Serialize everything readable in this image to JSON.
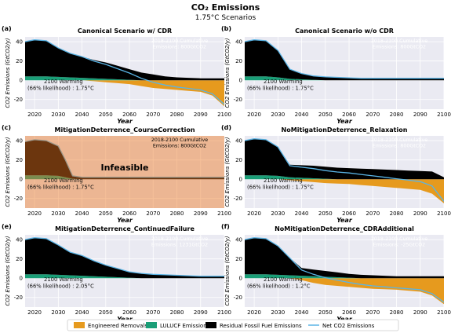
{
  "figure": {
    "title": "CO₂ Emissions",
    "subtitle": "1.75°C Scenarios",
    "legend": [
      {
        "label": "Engineered Removals",
        "color": "#E69A1E",
        "kind": "patch"
      },
      {
        "label": "LULUCF Emissions",
        "color": "#1A9E77",
        "kind": "patch"
      },
      {
        "label": "Residual Fossil Fuel Emissions",
        "color": "#000000",
        "kind": "patch"
      },
      {
        "label": "Net CO2 Emissions",
        "color": "#5AB4E5",
        "kind": "line"
      }
    ]
  },
  "chart_data": [
    {
      "type": "area",
      "panel": "(a)",
      "title": "Canonical Scenario w/ CDR",
      "xlabel": "Year",
      "ylabel": "CO2 Emissions (GtCO2/y)",
      "xlim": [
        2016,
        2100
      ],
      "ylim": [
        -30,
        45
      ],
      "xticks": [
        2020,
        2030,
        2040,
        2050,
        2060,
        2070,
        2080,
        2090,
        2100
      ],
      "yticks": [
        -20,
        0,
        20,
        40
      ],
      "annotation": "2018-2100 Cumulative\nEmissions: 800GtCO2",
      "warming_label": "2100 Warming",
      "warming_detail": "(66% likelihood) : 1.75°C",
      "shaded": false,
      "x": [
        2016,
        2020,
        2025,
        2030,
        2035,
        2040,
        2045,
        2050,
        2055,
        2060,
        2065,
        2070,
        2075,
        2080,
        2085,
        2090,
        2095,
        2100
      ],
      "series": [
        {
          "name": "Residual Fossil Fuel Emissions",
          "values": [
            36,
            38,
            37,
            30,
            25,
            22,
            19,
            17,
            14,
            11,
            8,
            6,
            4,
            3,
            2.5,
            2,
            2,
            2
          ]
        },
        {
          "name": "LULUCF Emissions",
          "values": [
            4,
            4,
            4,
            3.5,
            3,
            2.5,
            2,
            1.5,
            1,
            0.5,
            0,
            0,
            0,
            0,
            0,
            0,
            0,
            0
          ]
        },
        {
          "name": "Engineered Removals",
          "values": [
            0,
            0,
            0,
            0,
            0,
            0,
            -1,
            -2,
            -3,
            -4,
            -6,
            -8,
            -9,
            -10,
            -11,
            -12,
            -16,
            -27
          ]
        },
        {
          "name": "Net CO2 Emissions",
          "values": [
            40,
            42,
            41,
            33.5,
            28,
            24.5,
            20,
            16.5,
            12,
            7.5,
            2,
            -2,
            -5,
            -7,
            -8.5,
            -10,
            -14,
            -25
          ]
        }
      ]
    },
    {
      "type": "area",
      "panel": "(b)",
      "title": "Canonical Scenario w/o CDR",
      "xlabel": "Year",
      "ylabel": "CO2 Emissions (GtCO2/y)",
      "xlim": [
        2016,
        2100
      ],
      "ylim": [
        -30,
        45
      ],
      "xticks": [
        2020,
        2030,
        2040,
        2050,
        2060,
        2070,
        2080,
        2090,
        2100
      ],
      "yticks": [
        -20,
        0,
        20,
        40
      ],
      "annotation": "2018-2100 Cumulative\nEmissions: 800GtCO2",
      "warming_label": "2100 Warming",
      "warming_detail": "(66% likelihood) : 1.75°C",
      "shaded": false,
      "x": [
        2016,
        2020,
        2025,
        2030,
        2035,
        2040,
        2045,
        2050,
        2055,
        2060,
        2065,
        2070,
        2075,
        2080,
        2085,
        2090,
        2095,
        2100
      ],
      "series": [
        {
          "name": "Residual Fossil Fuel Emissions",
          "values": [
            36,
            38,
            37,
            28,
            10,
            6,
            4,
            3.5,
            3,
            2.5,
            2,
            2,
            2,
            2,
            2,
            2,
            2,
            2
          ]
        },
        {
          "name": "LULUCF Emissions",
          "values": [
            4,
            4,
            4,
            3,
            1.5,
            1,
            0.5,
            0,
            0,
            0,
            0,
            0,
            0,
            0,
            0,
            0,
            0,
            0
          ]
        },
        {
          "name": "Engineered Removals",
          "values": [
            0,
            0,
            0,
            0,
            0,
            0,
            0,
            0,
            0,
            0,
            0,
            0,
            0,
            0,
            0,
            0,
            0,
            0
          ]
        },
        {
          "name": "Net CO2 Emissions",
          "values": [
            40,
            42,
            41,
            31,
            11.5,
            7,
            4.5,
            3.5,
            3,
            2.5,
            2,
            2,
            2,
            2,
            2,
            2,
            2,
            2
          ]
        }
      ]
    },
    {
      "type": "area",
      "panel": "(c)",
      "title": "MitigationDeterrence_CourseCorrection",
      "xlabel": "Year",
      "ylabel": "CO2 Emissions (GtCO2/y)",
      "xlim": [
        2016,
        2100
      ],
      "ylim": [
        -30,
        45
      ],
      "xticks": [
        2020,
        2030,
        2040,
        2050,
        2060,
        2070,
        2080,
        2090,
        2100
      ],
      "yticks": [
        -20,
        0,
        20,
        40
      ],
      "annotation": "2018-2100 Cumulative\nEmissions: 800GtCO2",
      "warming_label": "2100 Warming",
      "warming_detail": "(66% likelihood) : 1.75°C",
      "shaded": true,
      "overlay_text": "Infeasible",
      "x": [
        2016,
        2020,
        2025,
        2030,
        2033,
        2036,
        2040,
        2045,
        2050,
        2055,
        2060,
        2065,
        2070,
        2075,
        2080,
        2085,
        2090,
        2095,
        2100
      ],
      "series": [
        {
          "name": "Residual Fossil Fuel Emissions",
          "values": [
            35,
            37,
            36,
            31,
            18,
            3,
            2,
            2,
            2,
            2,
            2,
            2,
            2,
            2,
            2,
            2,
            2,
            2,
            2
          ]
        },
        {
          "name": "LULUCF Emissions",
          "values": [
            4,
            4,
            4,
            3.5,
            2,
            0.5,
            0,
            0,
            0,
            0,
            0,
            0,
            0,
            0,
            0,
            0,
            0,
            0,
            0
          ]
        },
        {
          "name": "Engineered Removals",
          "values": [
            0,
            0,
            0,
            0,
            0,
            0,
            0,
            0,
            0,
            0,
            0,
            0,
            0,
            0,
            0,
            0,
            0,
            0,
            0
          ]
        },
        {
          "name": "Net CO2 Emissions",
          "values": [
            39,
            41,
            40,
            34.5,
            20,
            3.5,
            2,
            2,
            2,
            2,
            2,
            2,
            2,
            2,
            2,
            2,
            2,
            2,
            2
          ]
        }
      ]
    },
    {
      "type": "area",
      "panel": "(d)",
      "title": "NoMitigationDeterrence_Relaxation",
      "xlabel": "Year",
      "ylabel": "CO2 Emissions (GtCO2/y)",
      "xlim": [
        2016,
        2100
      ],
      "ylim": [
        -30,
        45
      ],
      "xticks": [
        2020,
        2030,
        2040,
        2050,
        2060,
        2070,
        2080,
        2090,
        2100
      ],
      "yticks": [
        -20,
        0,
        20,
        40
      ],
      "annotation": "2018-2100 Cumulative\nEmissions: 800GtCO2",
      "warming_label": "2100 Warming",
      "warming_detail": "(66% likelihood) : 1.75°C",
      "shaded": false,
      "x": [
        2016,
        2020,
        2025,
        2030,
        2035,
        2040,
        2045,
        2050,
        2055,
        2060,
        2065,
        2070,
        2075,
        2080,
        2085,
        2090,
        2095,
        2100
      ],
      "series": [
        {
          "name": "Residual Fossil Fuel Emissions",
          "values": [
            36,
            38,
            37,
            30,
            13,
            13,
            13,
            12.5,
            12,
            11.5,
            11,
            10.5,
            10,
            9.5,
            9,
            8.5,
            8,
            2
          ]
        },
        {
          "name": "LULUCF Emissions",
          "values": [
            4,
            4,
            4,
            3.5,
            2,
            1.5,
            1,
            0.5,
            0,
            0,
            0,
            0,
            0,
            0,
            0,
            0,
            0,
            0
          ]
        },
        {
          "name": "Engineered Removals",
          "values": [
            0,
            0,
            0,
            0,
            -1,
            -2,
            -3,
            -4,
            -4.5,
            -5,
            -6,
            -7,
            -8,
            -9,
            -10,
            -11,
            -15,
            -25
          ]
        },
        {
          "name": "Net CO2 Emissions",
          "values": [
            40,
            42,
            41,
            33.5,
            14,
            12.5,
            11,
            9,
            7.5,
            6.5,
            5,
            3.5,
            2,
            0.5,
            -1,
            -2.5,
            -7,
            -23
          ]
        }
      ]
    },
    {
      "type": "area",
      "panel": "(e)",
      "title": "MitigationDeterrence_ContinuedFailure",
      "xlabel": "Year",
      "ylabel": "CO2 Emissions (GtCO2/y)",
      "xlim": [
        2016,
        2100
      ],
      "ylim": [
        -30,
        45
      ],
      "xticks": [
        2020,
        2030,
        2040,
        2050,
        2060,
        2070,
        2080,
        2090,
        2100
      ],
      "yticks": [
        -20,
        0,
        20,
        40
      ],
      "annotation": "2018-2100 Cumulative\nEmissions: 1231GtCO2",
      "warming_label": "2100 Warming",
      "warming_detail": "(66% likelihood) : 2.05°C",
      "shaded": false,
      "x": [
        2016,
        2020,
        2025,
        2030,
        2035,
        2040,
        2045,
        2050,
        2055,
        2060,
        2065,
        2070,
        2075,
        2080,
        2085,
        2090,
        2095,
        2100
      ],
      "series": [
        {
          "name": "Residual Fossil Fuel Emissions",
          "values": [
            36,
            38,
            37,
            31,
            24,
            21,
            16,
            12,
            9,
            6,
            5,
            4,
            3.5,
            3,
            2.5,
            2,
            2,
            2
          ]
        },
        {
          "name": "LULUCF Emissions",
          "values": [
            4,
            4,
            4,
            3.5,
            3,
            2.5,
            2,
            1.5,
            1,
            0.5,
            0,
            0,
            0,
            0,
            0,
            0,
            0,
            0
          ]
        },
        {
          "name": "Engineered Removals",
          "values": [
            0,
            0,
            0,
            0,
            0,
            0,
            0,
            0,
            0,
            0,
            0,
            0,
            0,
            0,
            0,
            0,
            0,
            0
          ]
        },
        {
          "name": "Net CO2 Emissions",
          "values": [
            40,
            42,
            41,
            34.5,
            27,
            23.5,
            18,
            13.5,
            10,
            6.5,
            5,
            4,
            3.5,
            3,
            2.5,
            2,
            2,
            2
          ]
        }
      ]
    },
    {
      "type": "area",
      "panel": "(f)",
      "title": "NoMitigationDeterrence_CDRAdditional",
      "xlabel": "Year",
      "ylabel": "CO2 Emissions (GtCO2/y)",
      "xlim": [
        2016,
        2100
      ],
      "ylim": [
        -30,
        45
      ],
      "xticks": [
        2020,
        2030,
        2040,
        2050,
        2060,
        2070,
        2080,
        2090,
        2100
      ],
      "yticks": [
        -20,
        0,
        20,
        40
      ],
      "annotation": "2018-2100 Cumulative\nEmissions: -25GtCO2",
      "warming_label": "2100 Warming",
      "warming_detail": "(66% likelihood) : 1.2°C",
      "shaded": false,
      "x": [
        2016,
        2020,
        2025,
        2030,
        2035,
        2040,
        2045,
        2050,
        2055,
        2060,
        2065,
        2070,
        2075,
        2080,
        2085,
        2090,
        2095,
        2100
      ],
      "series": [
        {
          "name": "Residual Fossil Fuel Emissions",
          "values": [
            36,
            38,
            37,
            30,
            18,
            8,
            7,
            6,
            5,
            4,
            3.5,
            3,
            2.5,
            2,
            2,
            2,
            2,
            2
          ]
        },
        {
          "name": "LULUCF Emissions",
          "values": [
            4,
            4,
            4,
            3.5,
            3,
            2.5,
            2,
            1.5,
            1,
            0.5,
            0,
            0,
            0,
            0,
            0,
            0,
            0,
            0
          ]
        },
        {
          "name": "Engineered Removals",
          "values": [
            0,
            0,
            0,
            0,
            0,
            -2,
            -5,
            -7,
            -8,
            -9,
            -10,
            -11,
            -11.5,
            -12,
            -13,
            -14,
            -18,
            -27
          ]
        },
        {
          "name": "Net CO2 Emissions",
          "values": [
            40,
            42,
            41,
            33.5,
            21,
            8.5,
            4,
            0.5,
            -2,
            -4.5,
            -6.5,
            -8,
            -9,
            -10,
            -11,
            -12,
            -16,
            -25
          ]
        }
      ]
    }
  ]
}
